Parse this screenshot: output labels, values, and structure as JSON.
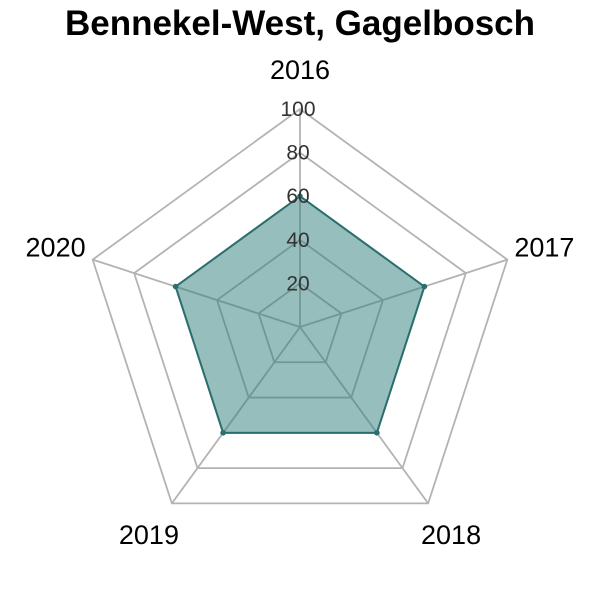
{
  "chart_data": {
    "type": "radar",
    "title": "Bennekel-West, Gagelbosch",
    "categories": [
      "2016",
      "2017",
      "2018",
      "2019",
      "2020"
    ],
    "series": [
      {
        "values": [
          60,
          60,
          60,
          60,
          60
        ]
      }
    ],
    "rmax": 100,
    "ticks": [
      20,
      40,
      60,
      80,
      100
    ],
    "fill_color": "#2e7d7b",
    "fill_opacity": 0.5,
    "line_color": "#2a6f6d",
    "grid_color": "#b3b3b3"
  }
}
